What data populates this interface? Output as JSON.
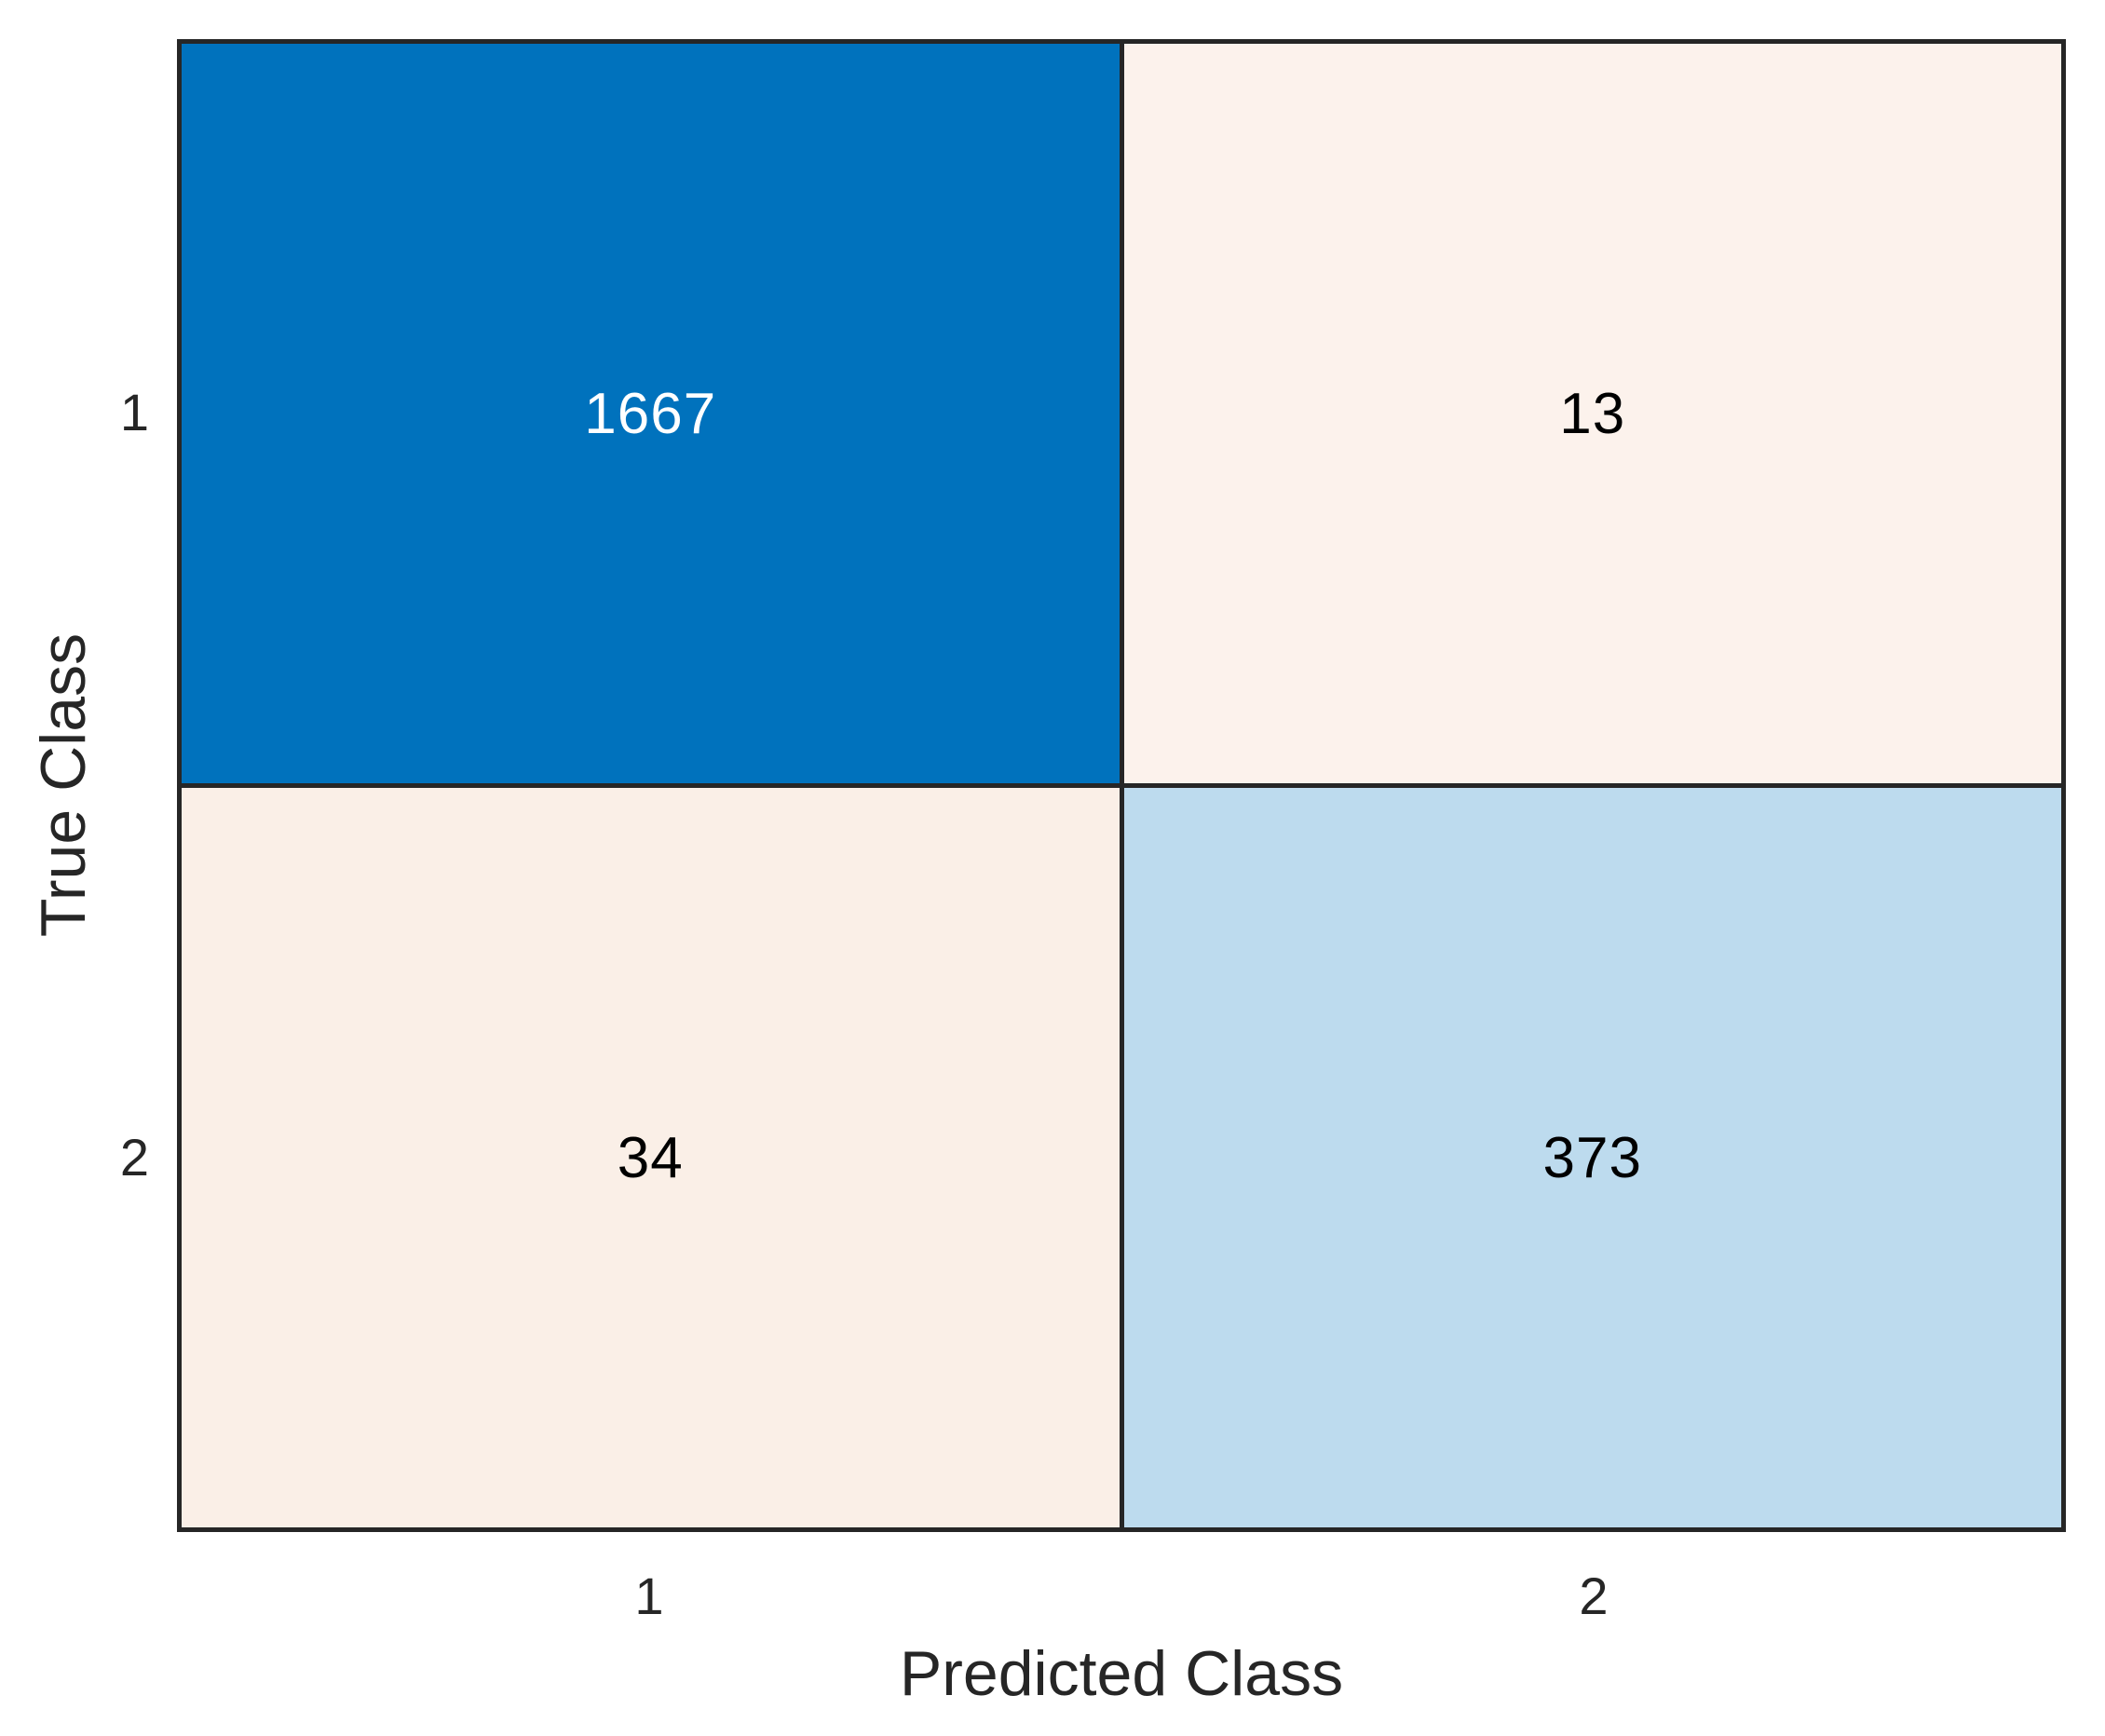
{
  "chart_data": {
    "type": "heatmap",
    "subtype": "confusion-matrix",
    "title": "",
    "xlabel": "Predicted Class",
    "ylabel": "True Class",
    "x_tick_labels": [
      "1",
      "2"
    ],
    "y_tick_labels": [
      "1",
      "2"
    ],
    "matrix": [
      [
        1667,
        13
      ],
      [
        34,
        373
      ]
    ],
    "cells": [
      {
        "true_class": "1",
        "predicted_class": "1",
        "value": "1667",
        "bg": "#0072BD",
        "fg": "#FFFFFF"
      },
      {
        "true_class": "1",
        "predicted_class": "2",
        "value": "13",
        "bg": "#FCF2EC",
        "fg": "#000000"
      },
      {
        "true_class": "2",
        "predicted_class": "1",
        "value": "34",
        "bg": "#FAEFE7",
        "fg": "#000000"
      },
      {
        "true_class": "2",
        "predicted_class": "2",
        "value": "373",
        "bg": "#BDDBEE",
        "fg": "#000000"
      }
    ],
    "layout": {
      "grid_on": false,
      "legend": "none",
      "colors": {
        "diagonal_accent": "#0072BD",
        "off_diagonal_accent": "#D95319",
        "grid_line": "#262626",
        "axis_text": "#262626",
        "figure_background": "#FFFFFF"
      }
    }
  }
}
